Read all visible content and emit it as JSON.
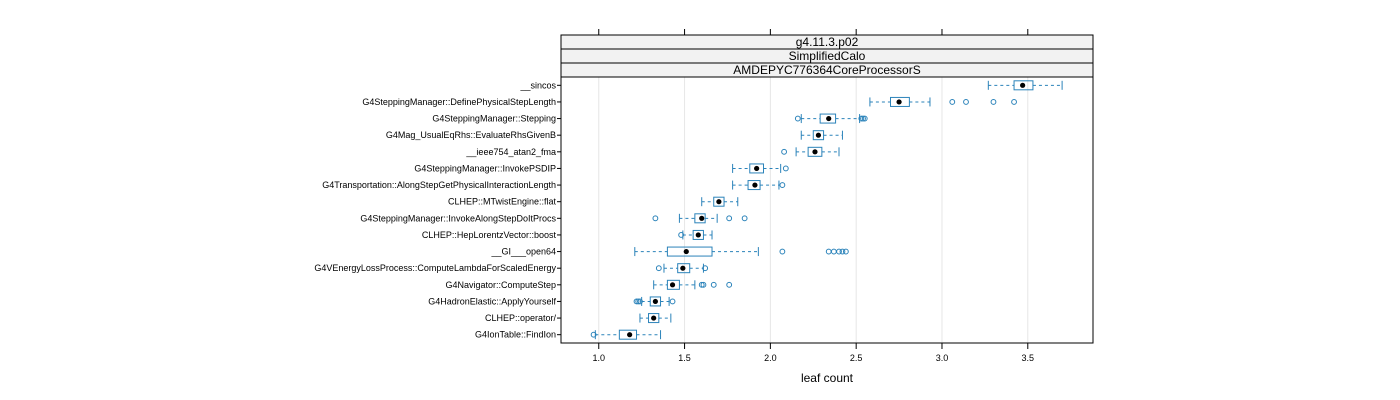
{
  "chart_data": {
    "type": "box",
    "strips": [
      "g4.11.3.p02",
      "SimplifiedCalo",
      "AMDEPYC776364CoreProcessorS"
    ],
    "xlabel": "leaf count",
    "ylabel": "",
    "xlim": [
      0.78,
      3.88
    ],
    "xticks": [
      1.0,
      1.5,
      2.0,
      2.5,
      3.0,
      3.5
    ],
    "xtick_labels": [
      "1.0",
      "1.5",
      "2.0",
      "2.5",
      "3.0",
      "3.5"
    ],
    "grid": "vertical",
    "box_color": "#2b83ba",
    "median_color": "#000000",
    "categories": [
      "__sincos",
      "G4SteppingManager::DefinePhysicalStepLength",
      "G4SteppingManager::Stepping",
      "G4Mag_UsualEqRhs::EvaluateRhsGivenB",
      "__ieee754_atan2_fma",
      "G4SteppingManager::InvokePSDIP",
      "G4Transportation::AlongStepGetPhysicalInteractionLength",
      "CLHEP::MTwistEngine::flat",
      "G4SteppingManager::InvokeAlongStepDoItProcs",
      "CLHEP::HepLorentzVector::boost",
      "__GI___open64",
      "G4VEnergyLossProcess::ComputeLambdaForScaledEnergy",
      "G4Navigator::ComputeStep",
      "G4HadronElastic::ApplyYourself",
      "CLHEP::operator/",
      "G4IonTable::FindIon"
    ],
    "boxes": [
      {
        "whisker_low": 3.27,
        "q1": 3.42,
        "median": 3.47,
        "q3": 3.53,
        "whisker_high": 3.7,
        "outliers": []
      },
      {
        "whisker_low": 2.58,
        "q1": 2.7,
        "median": 2.75,
        "q3": 2.81,
        "whisker_high": 2.93,
        "outliers": [
          3.06,
          3.14,
          3.3,
          3.42
        ]
      },
      {
        "whisker_low": 2.18,
        "q1": 2.29,
        "median": 2.34,
        "q3": 2.38,
        "whisker_high": 2.52,
        "outliers": [
          2.16,
          2.53,
          2.54,
          2.55
        ]
      },
      {
        "whisker_low": 2.18,
        "q1": 2.25,
        "median": 2.28,
        "q3": 2.31,
        "whisker_high": 2.42,
        "outliers": []
      },
      {
        "whisker_low": 2.15,
        "q1": 2.22,
        "median": 2.26,
        "q3": 2.3,
        "whisker_high": 2.4,
        "outliers": [
          2.08
        ]
      },
      {
        "whisker_low": 1.78,
        "q1": 1.88,
        "median": 1.92,
        "q3": 1.96,
        "whisker_high": 2.06,
        "outliers": [
          2.09
        ]
      },
      {
        "whisker_low": 1.78,
        "q1": 1.87,
        "median": 1.91,
        "q3": 1.94,
        "whisker_high": 2.05,
        "outliers": [
          2.07
        ]
      },
      {
        "whisker_low": 1.6,
        "q1": 1.67,
        "median": 1.7,
        "q3": 1.73,
        "whisker_high": 1.81,
        "outliers": []
      },
      {
        "whisker_low": 1.47,
        "q1": 1.56,
        "median": 1.6,
        "q3": 1.62,
        "whisker_high": 1.69,
        "outliers": [
          1.33,
          1.76,
          1.85
        ]
      },
      {
        "whisker_low": 1.49,
        "q1": 1.55,
        "median": 1.58,
        "q3": 1.61,
        "whisker_high": 1.66,
        "outliers": [
          1.48
        ]
      },
      {
        "whisker_low": 1.21,
        "q1": 1.4,
        "median": 1.51,
        "q3": 1.66,
        "whisker_high": 1.93,
        "outliers": [
          2.07,
          2.34,
          2.37,
          2.4,
          2.42,
          2.44
        ]
      },
      {
        "whisker_low": 1.38,
        "q1": 1.46,
        "median": 1.49,
        "q3": 1.53,
        "whisker_high": 1.61,
        "outliers": [
          1.35,
          1.62
        ]
      },
      {
        "whisker_low": 1.32,
        "q1": 1.4,
        "median": 1.43,
        "q3": 1.47,
        "whisker_high": 1.56,
        "outliers": [
          1.6,
          1.61,
          1.67,
          1.76
        ]
      },
      {
        "whisker_low": 1.25,
        "q1": 1.3,
        "median": 1.33,
        "q3": 1.36,
        "whisker_high": 1.41,
        "outliers": [
          1.22,
          1.23,
          1.24,
          1.43
        ]
      },
      {
        "whisker_low": 1.24,
        "q1": 1.29,
        "median": 1.32,
        "q3": 1.35,
        "whisker_high": 1.42,
        "outliers": []
      },
      {
        "whisker_low": 0.98,
        "q1": 1.12,
        "median": 1.18,
        "q3": 1.22,
        "whisker_high": 1.36,
        "outliers": [
          0.97
        ]
      }
    ]
  }
}
